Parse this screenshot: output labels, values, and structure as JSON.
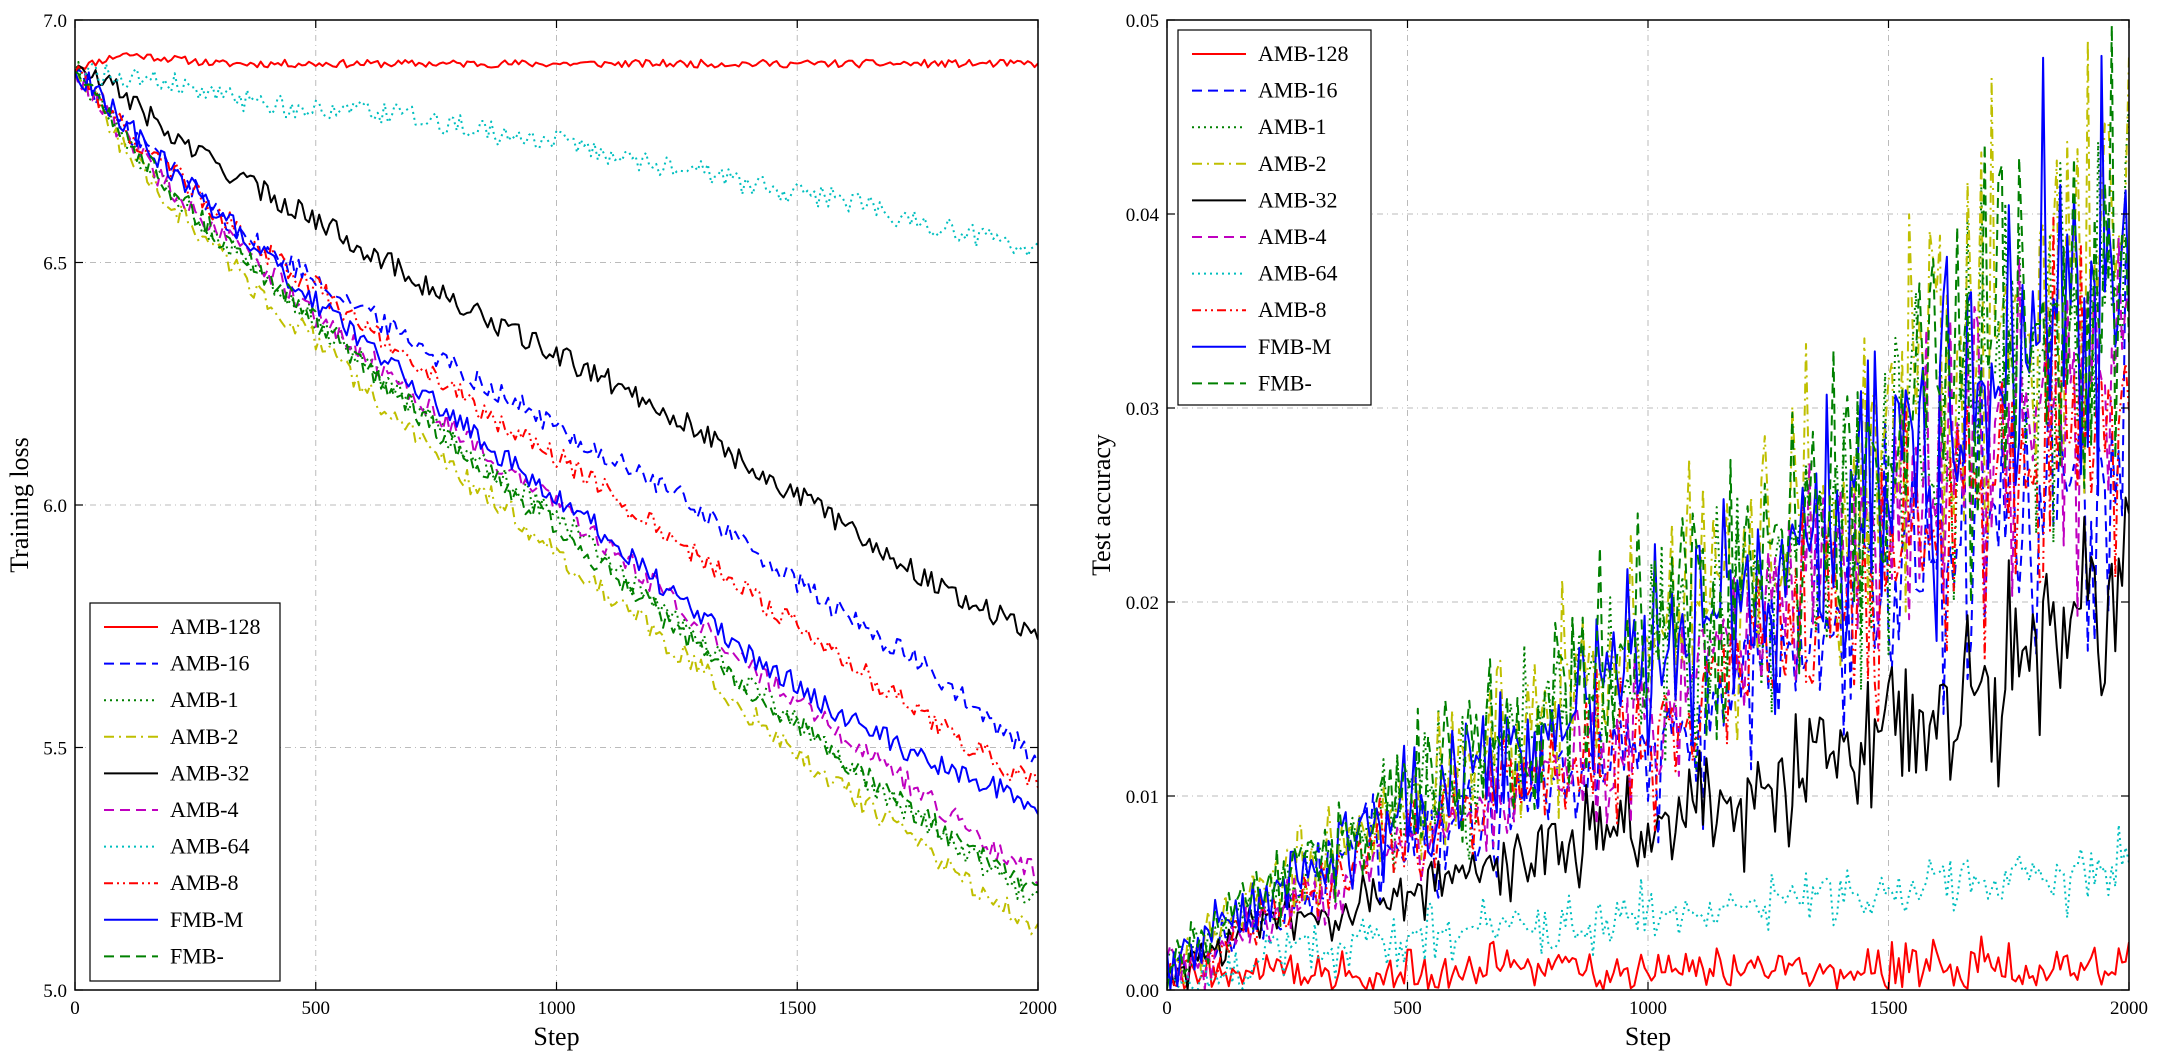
{
  "chart_data": [
    {
      "type": "line",
      "xlabel": "Step",
      "ylabel": "Training loss",
      "xlim": [
        0,
        2000
      ],
      "ylim": [
        5.0,
        7.0
      ],
      "xticks": [
        "0",
        "500",
        "1000",
        "1500",
        "2000"
      ],
      "yticks": [
        "5.0",
        "5.5",
        "6.0",
        "6.5",
        "7.0"
      ],
      "grid": true,
      "legend_position": "lower-left",
      "x": [
        0,
        100,
        200,
        300,
        400,
        500,
        600,
        700,
        800,
        900,
        1000,
        1100,
        1200,
        1300,
        1400,
        1500,
        1600,
        1700,
        1800,
        1900,
        2000
      ],
      "series": [
        {
          "name": "AMB-128",
          "color": "#ff0000",
          "dash": "solid",
          "values": [
            6.9,
            6.93,
            6.92,
            6.91,
            6.91,
            6.91,
            6.91,
            6.91,
            6.91,
            6.91,
            6.91,
            6.91,
            6.91,
            6.91,
            6.91,
            6.91,
            6.91,
            6.91,
            6.91,
            6.91,
            6.91
          ]
        },
        {
          "name": "AMB-16",
          "color": "#0000ff",
          "dash": "dashed",
          "values": [
            6.9,
            6.78,
            6.7,
            6.6,
            6.52,
            6.47,
            6.4,
            6.34,
            6.28,
            6.22,
            6.16,
            6.1,
            6.05,
            5.99,
            5.91,
            5.84,
            5.77,
            5.71,
            5.64,
            5.55,
            5.48
          ]
        },
        {
          "name": "AMB-1",
          "color": "#008000",
          "dash": "dotted",
          "values": [
            6.9,
            6.76,
            6.64,
            6.55,
            6.47,
            6.38,
            6.3,
            6.21,
            6.12,
            6.05,
            5.98,
            5.89,
            5.8,
            5.72,
            5.63,
            5.55,
            5.46,
            5.39,
            5.32,
            5.25,
            5.18
          ]
        },
        {
          "name": "AMB-2",
          "color": "#bfbf00",
          "dash": "dashdot",
          "values": [
            6.9,
            6.74,
            6.62,
            6.52,
            6.42,
            6.34,
            6.24,
            6.15,
            6.06,
            5.99,
            5.9,
            5.82,
            5.74,
            5.66,
            5.57,
            5.49,
            5.41,
            5.34,
            5.26,
            5.19,
            5.13
          ]
        },
        {
          "name": "AMB-32",
          "color": "#000000",
          "dash": "solid",
          "values": [
            6.9,
            6.85,
            6.76,
            6.7,
            6.64,
            6.59,
            6.53,
            6.47,
            6.41,
            6.36,
            6.31,
            6.26,
            6.21,
            6.15,
            6.08,
            6.02,
            5.96,
            5.89,
            5.83,
            5.78,
            5.73
          ]
        },
        {
          "name": "AMB-4",
          "color": "#bf00bf",
          "dash": "dashed",
          "values": [
            6.9,
            6.76,
            6.65,
            6.56,
            6.48,
            6.39,
            6.31,
            6.23,
            6.15,
            6.07,
            6.0,
            5.92,
            5.84,
            5.75,
            5.67,
            5.6,
            5.52,
            5.45,
            5.37,
            5.3,
            5.24
          ]
        },
        {
          "name": "AMB-64",
          "color": "#00bfbf",
          "dash": "dotted",
          "values": [
            6.9,
            6.88,
            6.87,
            6.84,
            6.83,
            6.81,
            6.81,
            6.8,
            6.78,
            6.76,
            6.75,
            6.72,
            6.7,
            6.69,
            6.66,
            6.64,
            6.63,
            6.6,
            6.57,
            6.55,
            6.53
          ]
        },
        {
          "name": "AMB-8",
          "color": "#ff0000",
          "dash": "dashdotdot",
          "values": [
            6.9,
            6.78,
            6.69,
            6.6,
            6.52,
            6.45,
            6.37,
            6.3,
            6.23,
            6.16,
            6.1,
            6.03,
            5.96,
            5.89,
            5.82,
            5.75,
            5.68,
            5.61,
            5.54,
            5.48,
            5.42
          ]
        },
        {
          "name": "FMB-M",
          "color": "#0000ff",
          "dash": "solid",
          "values": [
            6.9,
            6.79,
            6.69,
            6.6,
            6.51,
            6.42,
            6.34,
            6.25,
            6.17,
            6.09,
            6.02,
            5.94,
            5.85,
            5.77,
            5.69,
            5.63,
            5.56,
            5.51,
            5.46,
            5.42,
            5.38
          ]
        },
        {
          "name": "FMB-",
          "color": "#008000",
          "dash": "dashed",
          "values": [
            6.9,
            6.76,
            6.65,
            6.55,
            6.47,
            6.38,
            6.29,
            6.2,
            6.11,
            6.03,
            5.96,
            5.87,
            5.79,
            5.7,
            5.62,
            5.55,
            5.47,
            5.4,
            5.33,
            5.26,
            5.2
          ]
        }
      ]
    },
    {
      "type": "line",
      "xlabel": "Step",
      "ylabel": "Test accuracy",
      "xlim": [
        0,
        2000
      ],
      "ylim": [
        0.0,
        0.05
      ],
      "xticks": [
        "0",
        "500",
        "1000",
        "1500",
        "2000"
      ],
      "yticks": [
        "0.00",
        "0.01",
        "0.02",
        "0.03",
        "0.04",
        "0.05"
      ],
      "grid": true,
      "legend_position": "upper-left",
      "x": [
        0,
        100,
        200,
        300,
        400,
        500,
        600,
        700,
        800,
        900,
        1000,
        1100,
        1200,
        1300,
        1400,
        1500,
        1600,
        1700,
        1800,
        1900,
        2000
      ],
      "series": [
        {
          "name": "AMB-128",
          "color": "#ff0000",
          "dash": "solid",
          "values": [
            0.0004,
            0.0008,
            0.001,
            0.0008,
            0.0006,
            0.0008,
            0.0009,
            0.001,
            0.0012,
            0.0008,
            0.001,
            0.0011,
            0.0009,
            0.0009,
            0.001,
            0.0008,
            0.001,
            0.0011,
            0.0008,
            0.001,
            0.0009
          ]
        },
        {
          "name": "AMB-16",
          "color": "#0000ff",
          "dash": "dashed",
          "values": [
            0.001,
            0.002,
            0.004,
            0.005,
            0.008,
            0.007,
            0.008,
            0.009,
            0.011,
            0.012,
            0.012,
            0.014,
            0.016,
            0.018,
            0.02,
            0.021,
            0.022,
            0.024,
            0.026,
            0.027,
            0.028
          ]
        },
        {
          "name": "AMB-1",
          "color": "#008000",
          "dash": "dotted",
          "values": [
            0.001,
            0.003,
            0.005,
            0.006,
            0.008,
            0.01,
            0.011,
            0.012,
            0.014,
            0.016,
            0.017,
            0.019,
            0.021,
            0.023,
            0.025,
            0.027,
            0.029,
            0.031,
            0.033,
            0.035,
            0.037
          ]
        },
        {
          "name": "AMB-2",
          "color": "#bfbf00",
          "dash": "dashdot",
          "values": [
            0.001,
            0.003,
            0.005,
            0.007,
            0.008,
            0.01,
            0.012,
            0.013,
            0.015,
            0.017,
            0.018,
            0.02,
            0.022,
            0.024,
            0.026,
            0.028,
            0.031,
            0.033,
            0.036,
            0.038,
            0.041
          ]
        },
        {
          "name": "AMB-32",
          "color": "#000000",
          "dash": "solid",
          "values": [
            0.001,
            0.002,
            0.004,
            0.004,
            0.004,
            0.005,
            0.006,
            0.007,
            0.007,
            0.008,
            0.008,
            0.009,
            0.01,
            0.011,
            0.012,
            0.013,
            0.014,
            0.016,
            0.018,
            0.02,
            0.022
          ]
        },
        {
          "name": "AMB-4",
          "color": "#bf00bf",
          "dash": "dashed",
          "values": [
            0.001,
            0.002,
            0.004,
            0.005,
            0.006,
            0.008,
            0.009,
            0.01,
            0.012,
            0.013,
            0.014,
            0.016,
            0.018,
            0.02,
            0.022,
            0.024,
            0.026,
            0.028,
            0.03,
            0.032,
            0.034
          ]
        },
        {
          "name": "AMB-64",
          "color": "#00bfbf",
          "dash": "dotted",
          "values": [
            0.0005,
            0.001,
            0.0015,
            0.002,
            0.0025,
            0.003,
            0.003,
            0.0035,
            0.003,
            0.0035,
            0.004,
            0.004,
            0.0045,
            0.005,
            0.005,
            0.005,
            0.0055,
            0.0055,
            0.006,
            0.006,
            0.0065
          ]
        },
        {
          "name": "AMB-8",
          "color": "#ff0000",
          "dash": "dashdotdot",
          "values": [
            0.001,
            0.002,
            0.004,
            0.005,
            0.007,
            0.008,
            0.009,
            0.01,
            0.011,
            0.012,
            0.013,
            0.015,
            0.017,
            0.018,
            0.02,
            0.022,
            0.024,
            0.026,
            0.027,
            0.029,
            0.031
          ]
        },
        {
          "name": "FMB-M",
          "color": "#0000ff",
          "dash": "solid",
          "values": [
            0.001,
            0.003,
            0.005,
            0.006,
            0.008,
            0.009,
            0.011,
            0.012,
            0.014,
            0.016,
            0.017,
            0.019,
            0.021,
            0.023,
            0.025,
            0.027,
            0.029,
            0.031,
            0.033,
            0.036,
            0.038
          ]
        },
        {
          "name": "FMB-",
          "color": "#008000",
          "dash": "dashed",
          "values": [
            0.001,
            0.003,
            0.005,
            0.007,
            0.008,
            0.01,
            0.012,
            0.013,
            0.015,
            0.017,
            0.018,
            0.02,
            0.022,
            0.024,
            0.026,
            0.028,
            0.03,
            0.032,
            0.034,
            0.036,
            0.038
          ]
        }
      ]
    }
  ]
}
